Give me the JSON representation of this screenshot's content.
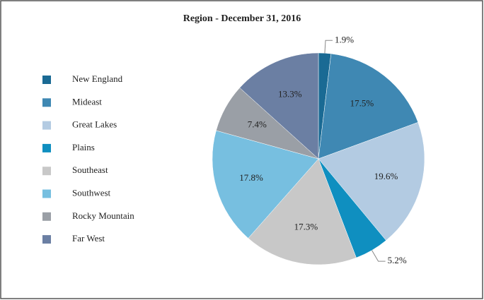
{
  "chart_data": {
    "type": "pie",
    "title": "Region - December 31, 2016",
    "categories": [
      "New England",
      "Mideast",
      "Great Lakes",
      "Plains",
      "Southeast",
      "Southwest",
      "Rocky Mountain",
      "Far West"
    ],
    "values": [
      1.9,
      17.5,
      19.6,
      5.2,
      17.3,
      17.8,
      7.4,
      13.3
    ],
    "value_labels": [
      "1.9%",
      "17.5%",
      "19.6%",
      "5.2%",
      "17.3%",
      "17.8%",
      "7.4%",
      "13.3%"
    ],
    "colors": [
      "#1a6a94",
      "#3f88b3",
      "#b3cbe2",
      "#0f8fc0",
      "#c8c8c8",
      "#77bfe0",
      "#9a9fa6",
      "#6b7fa3"
    ],
    "legend": "left"
  }
}
